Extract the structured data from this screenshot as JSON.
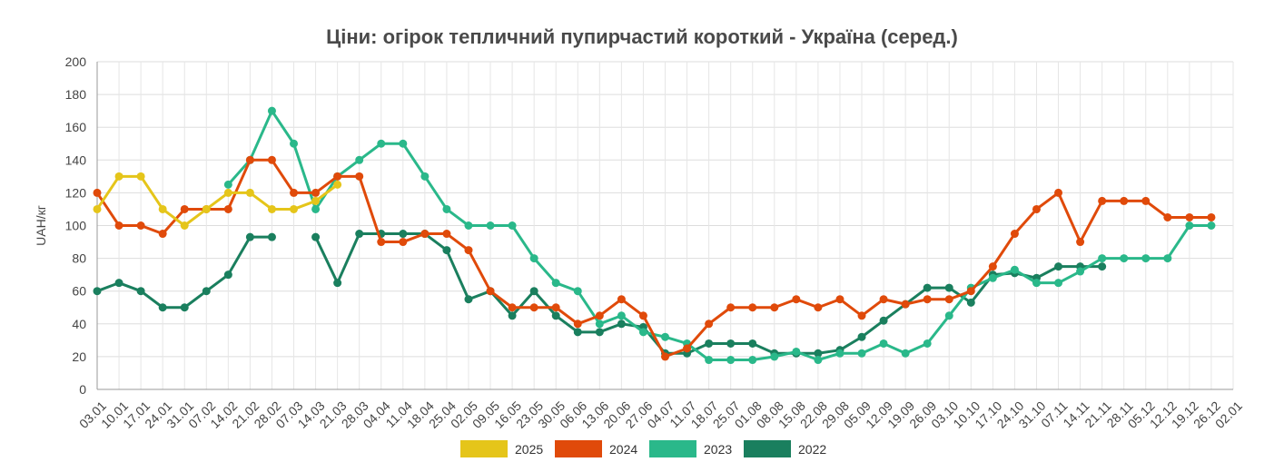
{
  "chart_data": {
    "type": "line",
    "title": "Ціни: огірок тепличний пупирчастий короткий - Україна (серед.)",
    "ylabel": "UAH/кг",
    "xlabel": "",
    "ylim": [
      0,
      200
    ],
    "yticks": [
      0,
      20,
      40,
      60,
      80,
      100,
      120,
      140,
      160,
      180,
      200
    ],
    "grid": true,
    "legend_position": "bottom",
    "categories": [
      "03.01",
      "10.01",
      "17.01",
      "24.01",
      "31.01",
      "07.02",
      "14.02",
      "21.02",
      "28.02",
      "07.03",
      "14.03",
      "21.03",
      "28.03",
      "04.04",
      "11.04",
      "18.04",
      "25.04",
      "02.05",
      "09.05",
      "16.05",
      "23.05",
      "30.05",
      "06.06",
      "13.06",
      "20.06",
      "27.06",
      "04.07",
      "11.07",
      "18.07",
      "25.07",
      "01.08",
      "08.08",
      "15.08",
      "22.08",
      "29.08",
      "05.09",
      "12.09",
      "19.09",
      "26.09",
      "03.10",
      "10.10",
      "17.10",
      "24.10",
      "31.10",
      "07.11",
      "14.11",
      "21.11",
      "28.11",
      "05.12",
      "12.12",
      "19.12",
      "26.12",
      "02.01"
    ],
    "series": [
      {
        "name": "2025",
        "color": "#e5c51a",
        "values": [
          110,
          130,
          130,
          110,
          100,
          110,
          120,
          120,
          110,
          110,
          115,
          125,
          null,
          null,
          null,
          null,
          null,
          null,
          null,
          null,
          null,
          null,
          null,
          null,
          null,
          null,
          null,
          null,
          null,
          null,
          null,
          null,
          null,
          null,
          null,
          null,
          null,
          null,
          null,
          null,
          null,
          null,
          null,
          null,
          null,
          null,
          null,
          null,
          null,
          null,
          null,
          null,
          null
        ]
      },
      {
        "name": "2024",
        "color": "#e04a0a",
        "values": [
          120,
          100,
          100,
          95,
          110,
          110,
          110,
          140,
          140,
          120,
          120,
          130,
          130,
          90,
          90,
          95,
          95,
          85,
          60,
          50,
          50,
          50,
          40,
          45,
          55,
          45,
          20,
          25,
          40,
          50,
          50,
          50,
          55,
          50,
          55,
          45,
          55,
          52,
          55,
          55,
          60,
          75,
          95,
          110,
          120,
          90,
          115,
          115,
          115,
          105,
          105,
          105,
          null
        ]
      },
      {
        "name": "2023",
        "color": "#2ab88a",
        "values": [
          null,
          null,
          null,
          null,
          null,
          null,
          125,
          140,
          170,
          150,
          110,
          130,
          140,
          150,
          150,
          130,
          110,
          100,
          100,
          100,
          80,
          65,
          60,
          40,
          45,
          35,
          32,
          28,
          18,
          18,
          18,
          20,
          23,
          18,
          22,
          22,
          28,
          22,
          28,
          45,
          62,
          68,
          73,
          65,
          65,
          72,
          80,
          80,
          80,
          80,
          100,
          100,
          null
        ]
      },
      {
        "name": "2022",
        "color": "#1a7f5e",
        "values": [
          60,
          65,
          60,
          50,
          50,
          60,
          70,
          93,
          93,
          null,
          93,
          65,
          95,
          95,
          95,
          95,
          85,
          55,
          60,
          45,
          60,
          45,
          35,
          35,
          40,
          38,
          22,
          22,
          28,
          28,
          28,
          22,
          22,
          22,
          24,
          32,
          42,
          52,
          62,
          62,
          53,
          70,
          71,
          68,
          75,
          75,
          75,
          null,
          null,
          null,
          null,
          null,
          null
        ]
      }
    ]
  }
}
